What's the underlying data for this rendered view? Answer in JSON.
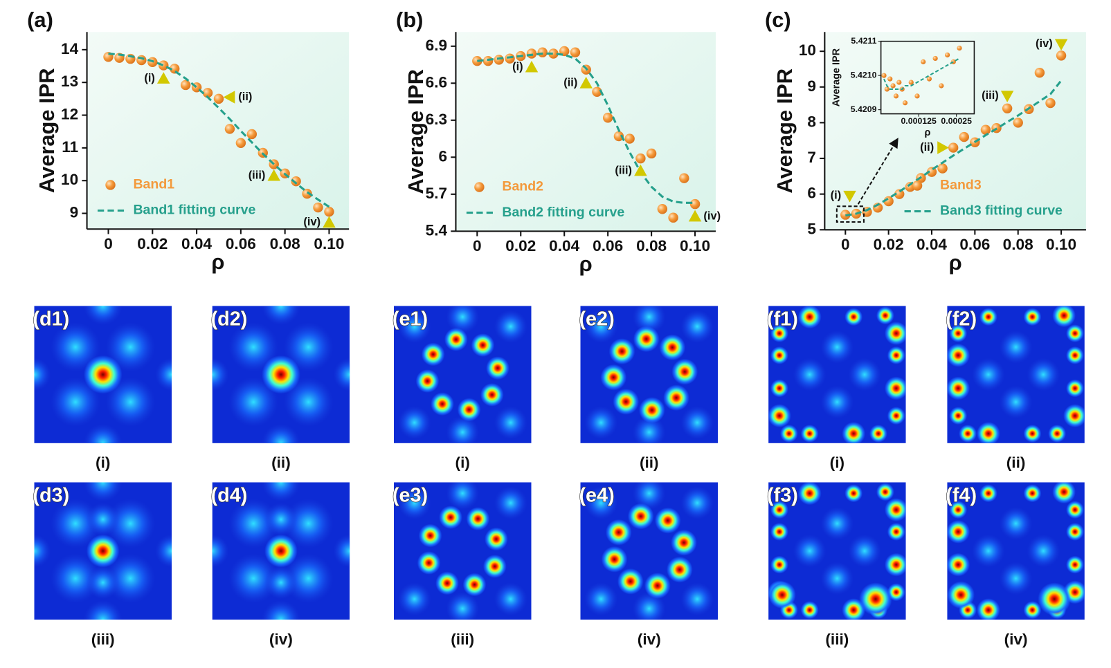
{
  "chart_data": [
    {
      "type": "scatter",
      "panel_label": "(a)",
      "xlabel": "ρ",
      "ylabel": "Average IPR",
      "x": [
        0,
        0.005,
        0.01,
        0.015,
        0.02,
        0.025,
        0.03,
        0.035,
        0.04,
        0.045,
        0.05,
        0.055,
        0.06,
        0.065,
        0.07,
        0.075,
        0.08,
        0.085,
        0.09,
        0.095,
        0.1
      ],
      "series": [
        {
          "name": "Band1",
          "type": "scatter",
          "color": "#f39a3c",
          "values": [
            13.78,
            13.75,
            13.72,
            13.68,
            13.62,
            13.52,
            13.42,
            12.92,
            12.85,
            12.68,
            12.5,
            11.58,
            11.15,
            11.42,
            10.85,
            10.5,
            10.22,
            9.98,
            9.6,
            9.18,
            9.05
          ]
        },
        {
          "name": "Band1 fitting curve",
          "type": "line",
          "color": "#26a08c",
          "values": [
            13.88,
            13.85,
            13.8,
            13.74,
            13.65,
            13.52,
            13.35,
            13.12,
            12.85,
            12.55,
            12.22,
            11.88,
            11.52,
            11.17,
            10.82,
            10.5,
            10.2,
            9.92,
            9.65,
            9.42,
            9.2
          ]
        }
      ],
      "annotations": [
        {
          "text": "(i)",
          "x": 0.025,
          "y": 13.12,
          "marker": "triangle-up"
        },
        {
          "text": "(ii)",
          "x": 0.055,
          "y": 12.55,
          "marker": "triangle-left"
        },
        {
          "text": "(iii)",
          "x": 0.075,
          "y": 10.15,
          "marker": "triangle-up"
        },
        {
          "text": "(iv)",
          "x": 0.1,
          "y": 8.72,
          "marker": "triangle-up"
        }
      ],
      "marker_color": "#d2c800",
      "xlim": [
        -0.0097,
        0.109
      ],
      "xticks": [
        0,
        0.02,
        0.04,
        0.06,
        0.08,
        {
          "value": 0.1,
          "label": "0.10"
        }
      ],
      "ylim": [
        8.52,
        14.54
      ],
      "yticks": [
        9,
        10,
        11,
        12,
        13,
        14
      ],
      "legend": "lower left"
    },
    {
      "type": "scatter",
      "panel_label": "(b)",
      "xlabel": "ρ",
      "ylabel": "Average IPR",
      "x": [
        0,
        0.005,
        0.01,
        0.015,
        0.02,
        0.025,
        0.03,
        0.035,
        0.04,
        0.045,
        0.05,
        0.055,
        0.06,
        0.065,
        0.07,
        0.075,
        0.08,
        0.085,
        0.09,
        0.095,
        0.1
      ],
      "series": [
        {
          "name": "Band2",
          "type": "scatter",
          "color": "#f39a3c",
          "values": [
            6.78,
            6.78,
            6.79,
            6.8,
            6.82,
            6.84,
            6.85,
            6.84,
            6.86,
            6.85,
            6.71,
            6.53,
            6.32,
            6.17,
            6.15,
            5.99,
            6.03,
            5.58,
            5.51,
            5.83,
            5.62
          ]
        },
        {
          "name": "Band2 fitting curve",
          "type": "line",
          "color": "#26a08c",
          "values": [
            6.78,
            6.79,
            6.8,
            6.81,
            6.82,
            6.83,
            6.84,
            6.84,
            6.83,
            6.8,
            6.72,
            6.6,
            6.42,
            6.22,
            6.04,
            5.88,
            5.76,
            5.68,
            5.64,
            5.63,
            5.63
          ]
        }
      ],
      "annotations": [
        {
          "text": "(i)",
          "x": 0.025,
          "y": 6.73,
          "marker": "triangle-up"
        },
        {
          "text": "(ii)",
          "x": 0.05,
          "y": 6.6,
          "marker": "triangle-up"
        },
        {
          "text": "(iii)",
          "x": 0.075,
          "y": 5.89,
          "marker": "triangle-up"
        },
        {
          "text": "(iv)",
          "x": 0.1,
          "y": 5.52,
          "marker": "triangle-up"
        }
      ],
      "marker_color": "#d2c800",
      "xlim": [
        -0.0098,
        0.1095
      ],
      "xticks": [
        0,
        0.02,
        0.04,
        0.06,
        0.08,
        {
          "value": 0.1,
          "label": "0.10"
        }
      ],
      "ylim": [
        5.4,
        7.015
      ],
      "yticks": [
        5.4,
        5.7,
        6,
        6.3,
        6.6,
        6.9
      ],
      "legend": "lower left"
    },
    {
      "type": "scatter",
      "panel_label": "(c)",
      "xlabel": "ρ",
      "ylabel": "Average IPR",
      "x": [
        0,
        0.005,
        0.01,
        0.015,
        0.02,
        0.025,
        0.03,
        0.035,
        0.04,
        0.045,
        0.05,
        0.055,
        0.06,
        0.065,
        0.07,
        0.075,
        0.08,
        0.085,
        0.09,
        0.095,
        0.1
      ],
      "series": [
        {
          "name": "Band3",
          "type": "scatter",
          "color": "#f39a3c",
          "values": [
            5.42,
            5.45,
            5.5,
            5.62,
            5.8,
            6,
            6.2,
            6.45,
            6.62,
            6.72,
            7.3,
            7.6,
            7.45,
            7.8,
            7.85,
            8.4,
            8,
            8.38,
            9.4,
            8.55,
            9.88
          ]
        },
        {
          "name": "Band3 fitting curve",
          "type": "line",
          "color": "#26a08c",
          "values": [
            5.4,
            5.45,
            5.55,
            5.7,
            5.88,
            6.07,
            6.27,
            6.47,
            6.68,
            6.88,
            7.08,
            7.27,
            7.46,
            7.65,
            7.83,
            8.02,
            8.2,
            8.4,
            8.6,
            8.8,
            9.18
          ]
        }
      ],
      "annotations": [
        {
          "text": "(i)",
          "x": 0.002,
          "y": 5.95,
          "marker": "triangle-down"
        },
        {
          "text": "(ii)",
          "x": 0.045,
          "y": 7.3,
          "marker": "triangle-right"
        },
        {
          "text": "(iii)",
          "x": 0.075,
          "y": 8.75,
          "marker": "triangle-down"
        },
        {
          "text": "(iv)",
          "x": 0.1,
          "y": 10.2,
          "marker": "triangle-down"
        }
      ],
      "marker_color": "#d2c800",
      "xlim": [
        -0.0096,
        0.1115
      ],
      "xticks": [
        0,
        0.02,
        0.04,
        0.06,
        0.08,
        {
          "value": 0.1,
          "label": "0.10"
        }
      ],
      "ylim": [
        5,
        10.54
      ],
      "yticks": [
        5,
        6,
        7,
        8,
        9,
        10
      ],
      "legend": "lower right"
    },
    {
      "type": "scatter",
      "xlabel": "ρ",
      "ylabel": "Average IPR",
      "x": [
        1e-05,
        2e-05,
        3e-05,
        4e-05,
        5e-05,
        6e-05,
        7e-05,
        8e-05,
        0.0001,
        0.00012,
        0.00014,
        0.00016,
        0.00018,
        0.0002,
        0.00022,
        0.00024,
        0.00026
      ],
      "series": [
        {
          "type": "scatter",
          "color": "#f39a3c",
          "values": [
            5.421,
            5.42096,
            5.42099,
            5.42097,
            5.42094,
            5.42098,
            5.42096,
            5.42092,
            5.42098,
            5.42094,
            5.42104,
            5.42099,
            5.42105,
            5.42097,
            5.42106,
            5.42104,
            5.42108
          ]
        },
        {
          "type": "line",
          "color": "#26a08c",
          "values": [
            5.42099,
            5.42097,
            5.42096,
            5.42096,
            5.42096,
            5.42096,
            5.42096,
            5.42097,
            5.42097,
            5.42098,
            5.42099,
            5.421,
            5.42101,
            5.42102,
            5.42103,
            5.42104,
            5.42105
          ]
        }
      ],
      "xlim": [
        0,
        0.000309
      ],
      "xticks": [
        0.000125,
        0.00025
      ],
      "ylim": [
        5.420888,
        5.4211
      ],
      "yticks": [
        {
          "value": 5.4209,
          "label": "5.4209"
        },
        {
          "value": 5.421,
          "label": "5.4210"
        },
        {
          "value": 5.4211,
          "label": "5.4211"
        }
      ]
    }
  ],
  "panels": [
    {
      "label": "(d1)",
      "caption": "(i)"
    },
    {
      "label": "(d2)",
      "caption": "(ii)"
    },
    {
      "label": "(e1)",
      "caption": "(i)"
    },
    {
      "label": "(e2)",
      "caption": "(ii)"
    },
    {
      "label": "(f1)",
      "caption": "(i)"
    },
    {
      "label": "(f2)",
      "caption": "(ii)"
    },
    {
      "label": "(d3)",
      "caption": "(iii)"
    },
    {
      "label": "(d4)",
      "caption": "(iv)"
    },
    {
      "label": "(e3)",
      "caption": "(iii)"
    },
    {
      "label": "(e4)",
      "caption": "(iv)"
    },
    {
      "label": "(f3)",
      "caption": "(iii)"
    },
    {
      "label": "(f4)",
      "caption": "(iv)"
    }
  ]
}
